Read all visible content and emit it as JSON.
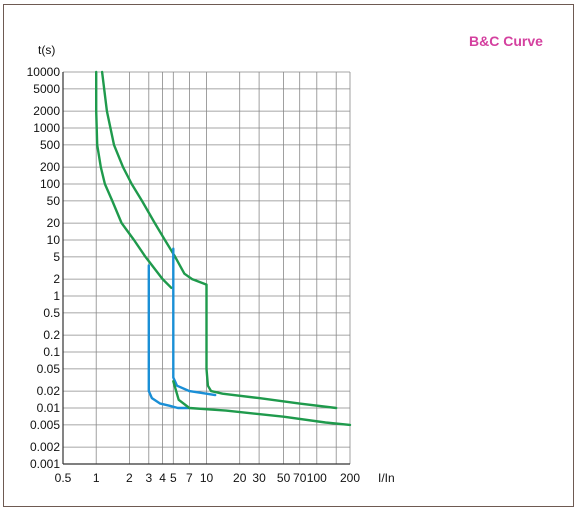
{
  "chart_data": {
    "type": "line",
    "title": "B&C Curve",
    "xlabel": "I/In",
    "ylabel": "t(s)",
    "x_scale": "log",
    "y_scale": "log",
    "xlim": [
      0.5,
      200
    ],
    "ylim": [
      0.001,
      10000
    ],
    "grid": true,
    "x_ticks": [
      {
        "v": 0.5,
        "label": "0.5"
      },
      {
        "v": 1,
        "label": "1"
      },
      {
        "v": 2,
        "label": "2"
      },
      {
        "v": 3,
        "label": "3"
      },
      {
        "v": 4,
        "label": "4"
      },
      {
        "v": 5,
        "label": "5"
      },
      {
        "v": 7,
        "label": "7"
      },
      {
        "v": 10,
        "label": "10"
      },
      {
        "v": 20,
        "label": "20"
      },
      {
        "v": 30,
        "label": "30"
      },
      {
        "v": 50,
        "label": "50"
      },
      {
        "v": 70,
        "label": "70"
      },
      {
        "v": 100,
        "label": "100"
      },
      {
        "v": 200,
        "label": "200"
      }
    ],
    "y_ticks": [
      {
        "v": 10000,
        "label": "10000"
      },
      {
        "v": 5000,
        "label": "5000"
      },
      {
        "v": 2000,
        "label": "2000"
      },
      {
        "v": 1000,
        "label": "1000"
      },
      {
        "v": 500,
        "label": "500"
      },
      {
        "v": 200,
        "label": "200"
      },
      {
        "v": 100,
        "label": "100"
      },
      {
        "v": 50,
        "label": "50"
      },
      {
        "v": 20,
        "label": "20"
      },
      {
        "v": 10,
        "label": "10"
      },
      {
        "v": 5,
        "label": "5"
      },
      {
        "v": 2,
        "label": "2"
      },
      {
        "v": 1,
        "label": "1"
      },
      {
        "v": 0.5,
        "label": "0.5"
      },
      {
        "v": 0.2,
        "label": "0.2"
      },
      {
        "v": 0.1,
        "label": "0.1"
      },
      {
        "v": 0.05,
        "label": "0.05"
      },
      {
        "v": 0.02,
        "label": "0.02"
      },
      {
        "v": 0.01,
        "label": "0.01"
      },
      {
        "v": 0.005,
        "label": "0.005"
      },
      {
        "v": 0.002,
        "label": "0.002"
      },
      {
        "v": 0.001,
        "label": "0.001"
      }
    ],
    "x_grid": [
      0.5,
      1,
      2,
      3,
      4,
      5,
      7,
      10,
      20,
      30,
      50,
      70,
      100,
      150,
      200
    ],
    "y_grid": [
      10000,
      5000,
      2000,
      1000,
      500,
      200,
      100,
      50,
      20,
      10,
      5,
      2,
      1,
      0.5,
      0.2,
      0.1,
      0.05,
      0.02,
      0.01,
      0.005,
      0.002,
      0.001
    ],
    "series": [
      {
        "color": "#1f9a4c",
        "points": [
          [
            1.0,
            10000
          ],
          [
            1.0,
            2000
          ],
          [
            1.02,
            500
          ],
          [
            1.1,
            200
          ],
          [
            1.2,
            100
          ],
          [
            1.4,
            50
          ],
          [
            1.7,
            20
          ],
          [
            2.2,
            10
          ],
          [
            2.8,
            5
          ],
          [
            4.0,
            2
          ],
          [
            4.8,
            1.4
          ]
        ]
      },
      {
        "color": "#1f9a4c",
        "points": [
          [
            1.13,
            10000
          ],
          [
            1.25,
            2000
          ],
          [
            1.45,
            500
          ],
          [
            1.75,
            200
          ],
          [
            2.1,
            100
          ],
          [
            2.6,
            50
          ],
          [
            3.4,
            20
          ],
          [
            4.2,
            10
          ],
          [
            5.2,
            5
          ],
          [
            6.3,
            2.5
          ],
          [
            7.4,
            2
          ],
          [
            10.0,
            1.6
          ],
          [
            10.0,
            0.05
          ],
          [
            10.3,
            0.025
          ],
          [
            11.0,
            0.02
          ],
          [
            14.0,
            0.018
          ],
          [
            30.0,
            0.015
          ],
          [
            70.0,
            0.012
          ],
          [
            150.0,
            0.01
          ]
        ]
      },
      {
        "color": "#1a8fd6",
        "points": [
          [
            3.0,
            3.5
          ],
          [
            3.0,
            0.02
          ],
          [
            3.2,
            0.015
          ],
          [
            3.8,
            0.012
          ],
          [
            4.6,
            0.011
          ],
          [
            5.5,
            0.01
          ],
          [
            7.0,
            0.01
          ]
        ]
      },
      {
        "color": "#1a8fd6",
        "points": [
          [
            5.0,
            7.0
          ],
          [
            5.0,
            0.035
          ],
          [
            5.4,
            0.025
          ],
          [
            7.0,
            0.02
          ],
          [
            10.0,
            0.018
          ],
          [
            12.0,
            0.017
          ]
        ]
      },
      {
        "color": "#1f9a4c",
        "points": [
          [
            5.0,
            0.03
          ],
          [
            5.6,
            0.014
          ],
          [
            7.0,
            0.01
          ],
          [
            15.0,
            0.009
          ],
          [
            50.0,
            0.007
          ],
          [
            120.0,
            0.0055
          ],
          [
            200.0,
            0.005
          ]
        ]
      }
    ]
  },
  "colors": {
    "title": "#d4409f",
    "grid": "#888888",
    "frame": "#6e5a52",
    "text": "#111111"
  }
}
